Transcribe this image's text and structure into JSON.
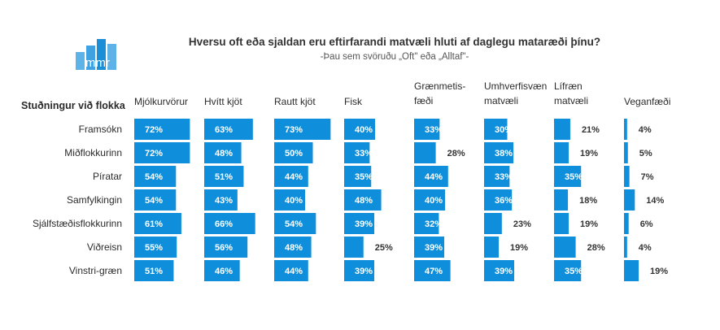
{
  "title": "Hversu oft eða sjaldan eru eftirfarandi matvæli hluti af daglegu mataræði þínu?",
  "subtitle": "-Þau sem svöruðu „Oft\" eða „Alltaf\"-",
  "logo": {
    "text": "mmr",
    "color": "#1a8fd8"
  },
  "colors": {
    "bar": "#0f8fdb"
  },
  "chart_data": {
    "type": "bar",
    "orientation": "horizontal",
    "row_header": "Stuðningur við flokka",
    "categories": [
      "Framsókn",
      "Miðflokkurinn",
      "Píratar",
      "Samfylkingin",
      "Sjálfstæðisflokkurinn",
      "Viðreisn",
      "Vinstri-græn"
    ],
    "series": [
      {
        "name": "Mjólkurvörur",
        "name_lines": [
          "Mjólkurvörur"
        ],
        "values": [
          72,
          72,
          54,
          54,
          61,
          55,
          51
        ]
      },
      {
        "name": "Hvítt kjöt",
        "name_lines": [
          "Hvítt kjöt"
        ],
        "values": [
          63,
          48,
          51,
          43,
          66,
          56,
          46
        ]
      },
      {
        "name": "Rautt kjöt",
        "name_lines": [
          "Rautt kjöt"
        ],
        "values": [
          73,
          50,
          44,
          40,
          54,
          48,
          44
        ]
      },
      {
        "name": "Fisk",
        "name_lines": [
          "Fisk"
        ],
        "values": [
          40,
          33,
          35,
          48,
          39,
          25,
          39
        ]
      },
      {
        "name": "Grænmetisfæði",
        "name_lines": [
          "Grænmetis-",
          "fæði"
        ],
        "values": [
          33,
          28,
          44,
          40,
          32,
          39,
          47
        ]
      },
      {
        "name": "Umhverfisvæn matvæli",
        "name_lines": [
          "Umhverfisvæn",
          "matvæli"
        ],
        "values": [
          30,
          38,
          33,
          36,
          23,
          19,
          39
        ]
      },
      {
        "name": "Lífræn matvæli",
        "name_lines": [
          "Lífræn",
          "matvæli"
        ],
        "values": [
          21,
          19,
          35,
          18,
          19,
          28,
          35
        ]
      },
      {
        "name": "Veganfæði",
        "name_lines": [
          "Veganfæði"
        ],
        "values": [
          4,
          5,
          7,
          14,
          6,
          4,
          19
        ]
      }
    ],
    "unit": "%",
    "grid": false,
    "legend": "none"
  }
}
